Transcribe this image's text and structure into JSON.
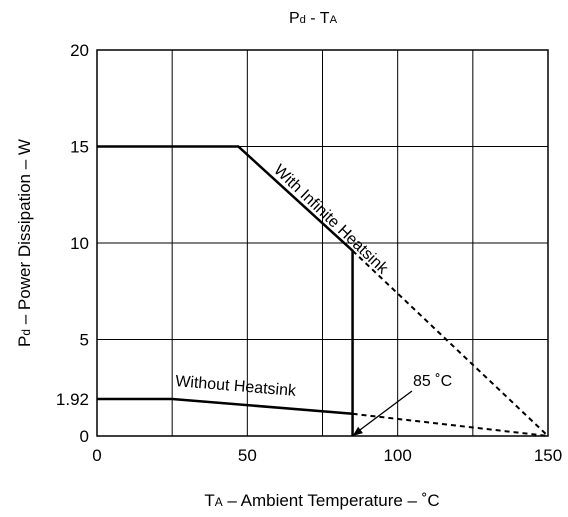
{
  "chart_data": {
    "type": "line",
    "title": "Pd - TA",
    "xlabel": "TA – Ambient Temperature – ˚C",
    "ylabel": "Pd – Power Dissipation – W",
    "xlim": [
      0,
      150
    ],
    "ylim": [
      0,
      20
    ],
    "x_ticks": [
      0,
      50,
      100,
      150
    ],
    "x_gridlines": [
      0,
      25,
      50,
      75,
      100,
      125,
      150
    ],
    "y_ticks": [
      {
        "value": 0,
        "label": "0"
      },
      {
        "value": 1.92,
        "label": "1.92"
      },
      {
        "value": 5,
        "label": "5"
      },
      {
        "value": 10,
        "label": "10"
      },
      {
        "value": 15,
        "label": "15"
      },
      {
        "value": 20,
        "label": "20"
      }
    ],
    "y_gridlines": [
      0,
      5,
      10,
      15,
      20
    ],
    "grid": true,
    "series": [
      {
        "name": "With Infinite Heatsink",
        "points": [
          [
            0,
            15
          ],
          [
            47,
            15
          ],
          [
            85,
            9.6
          ],
          [
            85,
            0
          ]
        ],
        "extension": [
          [
            85,
            9.6
          ],
          [
            150,
            0
          ]
        ]
      },
      {
        "name": "Without Heatsink",
        "points": [
          [
            0,
            1.92
          ],
          [
            25,
            1.92
          ],
          [
            85,
            1.15
          ]
        ],
        "extension": [
          [
            85,
            1.15
          ],
          [
            150,
            0
          ]
        ]
      }
    ],
    "annotations": [
      {
        "text": "85 ˚C",
        "points_to": [
          85,
          0
        ]
      }
    ]
  }
}
